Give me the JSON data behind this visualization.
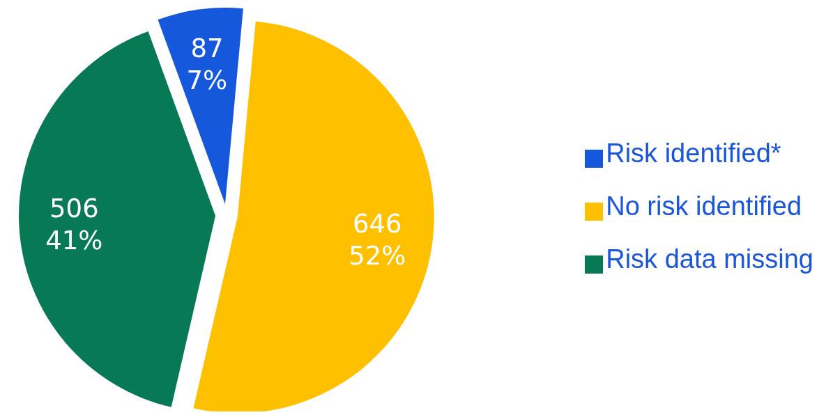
{
  "chart_data": {
    "type": "pie",
    "categories": [
      "Risk identified*",
      "No risk identified",
      "Risk data missing"
    ],
    "values": [
      87,
      646,
      506
    ],
    "colors": [
      "#1658dc",
      "#ffc000",
      "#077a55"
    ],
    "value_labels": [
      "87\n7%",
      "646\n52%",
      "506\n41%"
    ],
    "legend": "right"
  }
}
